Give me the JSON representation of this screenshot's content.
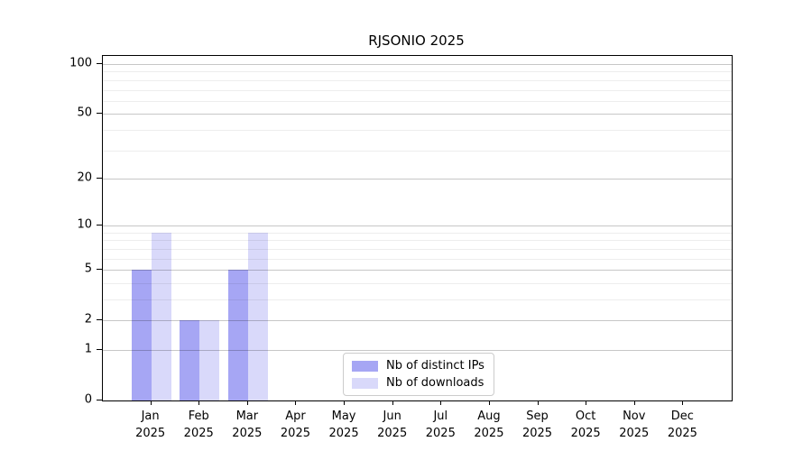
{
  "chart_data": {
    "type": "bar",
    "title": "RJSONIO 2025",
    "categories": [
      "Jan",
      "Feb",
      "Mar",
      "Apr",
      "May",
      "Jun",
      "Jul",
      "Aug",
      "Sep",
      "Oct",
      "Nov",
      "Dec"
    ],
    "year_label": "2025",
    "series": [
      {
        "name": "Nb of distinct IPs",
        "color": "#a6a6f4",
        "values": [
          5,
          2,
          5,
          0,
          0,
          0,
          0,
          0,
          0,
          0,
          0,
          0
        ]
      },
      {
        "name": "Nb of downloads",
        "color": "#d9d9fa",
        "values": [
          9,
          2,
          9,
          0,
          0,
          0,
          0,
          0,
          0,
          0,
          0,
          0
        ]
      }
    ],
    "yscale": "log1p",
    "ylim": [
      0,
      112
    ],
    "y_major_ticks": [
      0,
      1,
      2,
      5,
      10,
      20,
      50,
      100
    ],
    "y_minor_gridlines": [
      3,
      4,
      6,
      7,
      8,
      9,
      30,
      40,
      60,
      70,
      80,
      90
    ],
    "grid": "horizontal, drawn over bars",
    "legend_position": "inside plot, lower center",
    "axis_color": "#000000",
    "background": "#ffffff"
  }
}
